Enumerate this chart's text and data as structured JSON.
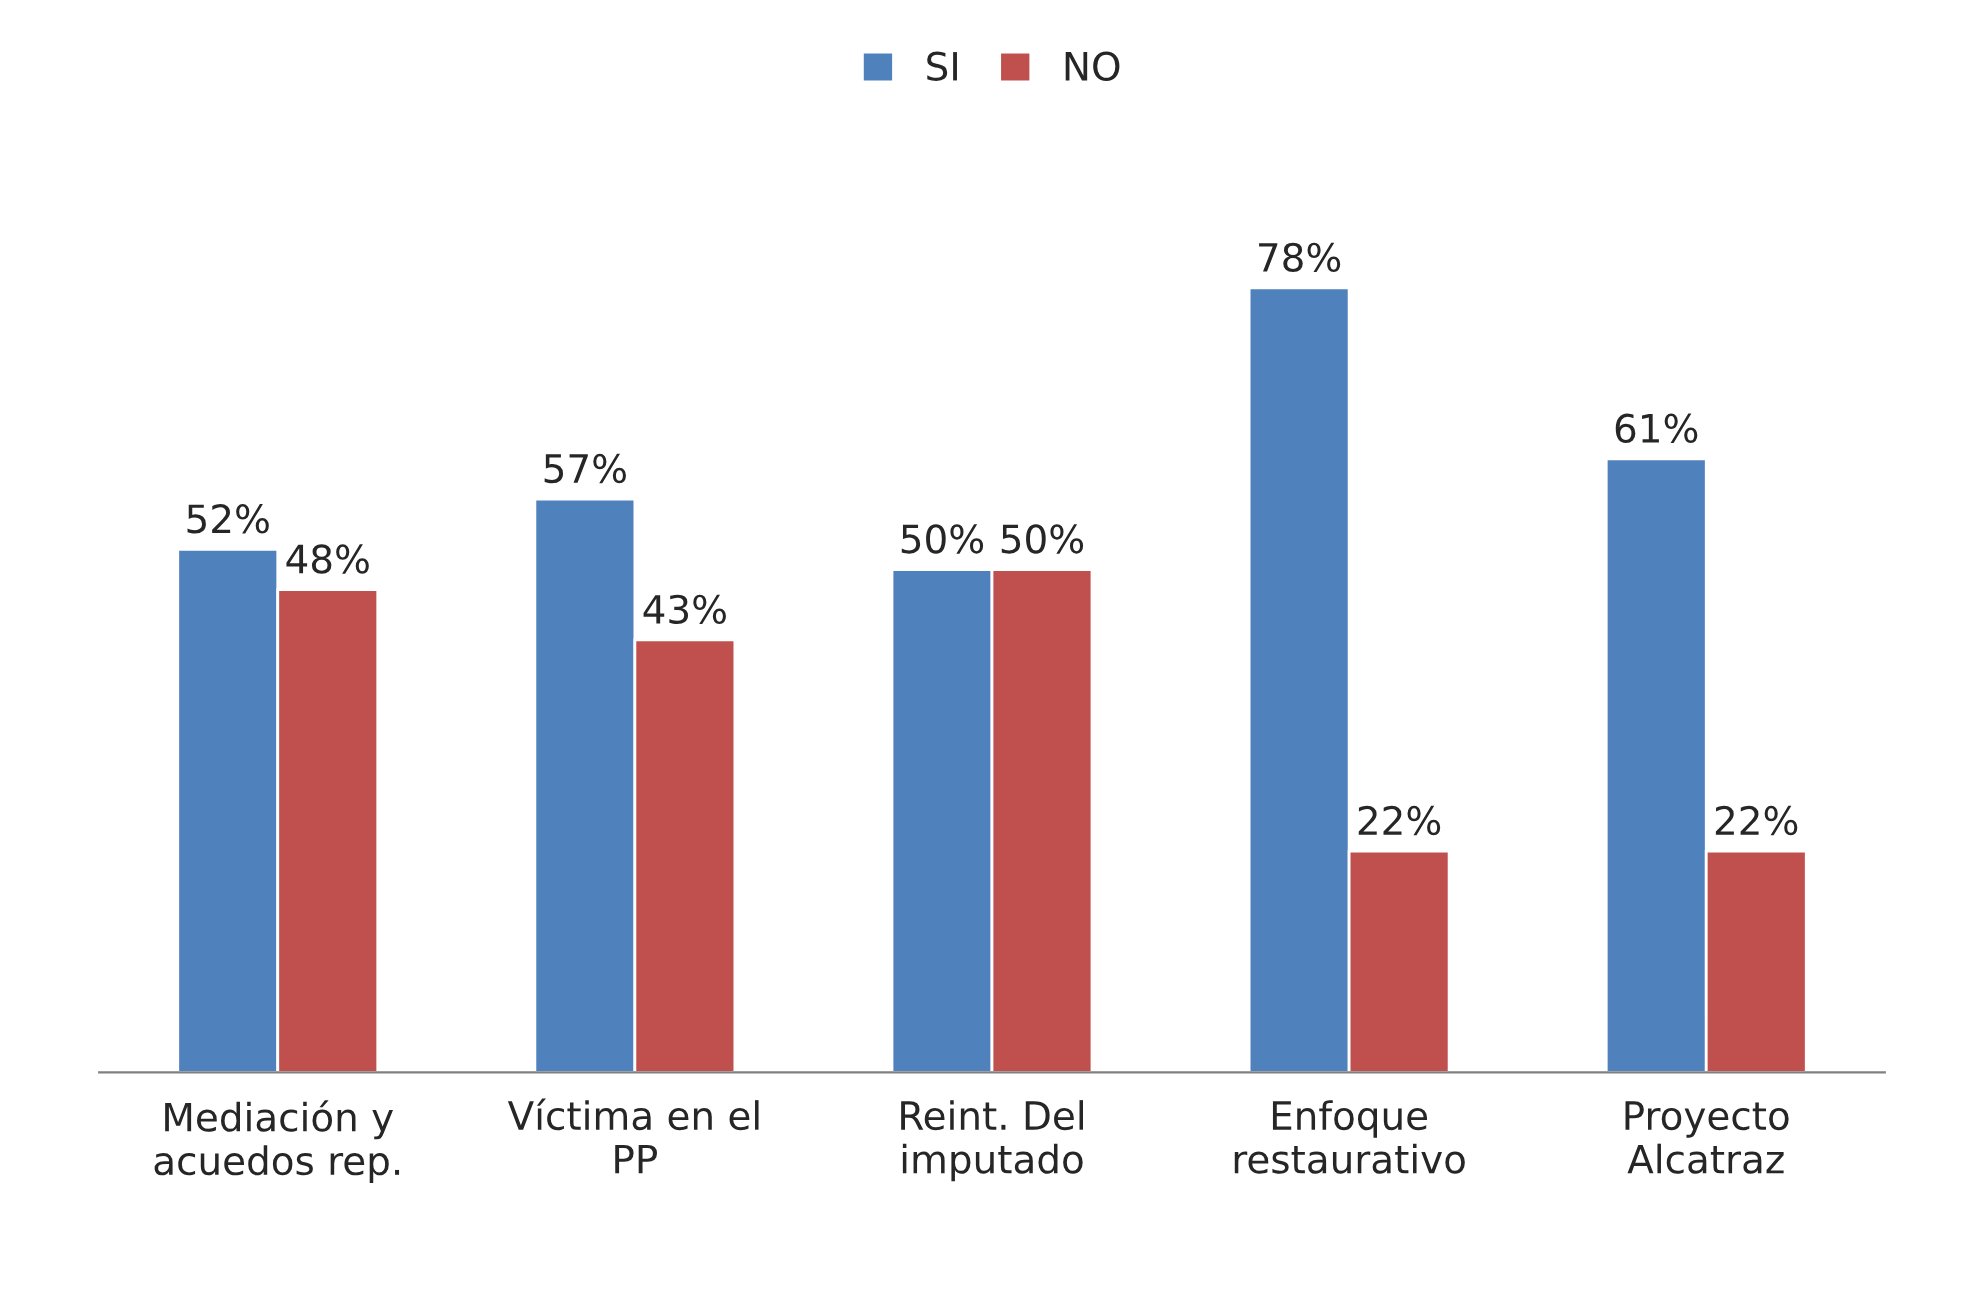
{
  "chart_data": {
    "type": "bar",
    "categories": [
      "Mediación y\nacuedos rep.",
      "Víctima en el\nPP",
      "Reint. Del\nimputado",
      "Enfoque\nrestaurativo",
      "Proyecto\nAlcatraz"
    ],
    "series": [
      {
        "name": "SI",
        "color": "#4f81bd",
        "values": [
          52,
          57,
          50,
          78,
          61
        ],
        "value_labels": [
          "52%",
          "57%",
          "50%",
          "78%",
          "61%"
        ]
      },
      {
        "name": "NO",
        "color": "#c0504d",
        "values": [
          48,
          43,
          50,
          22,
          22
        ],
        "value_labels": [
          "48%",
          "43%",
          "50%",
          "22%",
          "22%"
        ]
      }
    ],
    "legend": "top"
  }
}
